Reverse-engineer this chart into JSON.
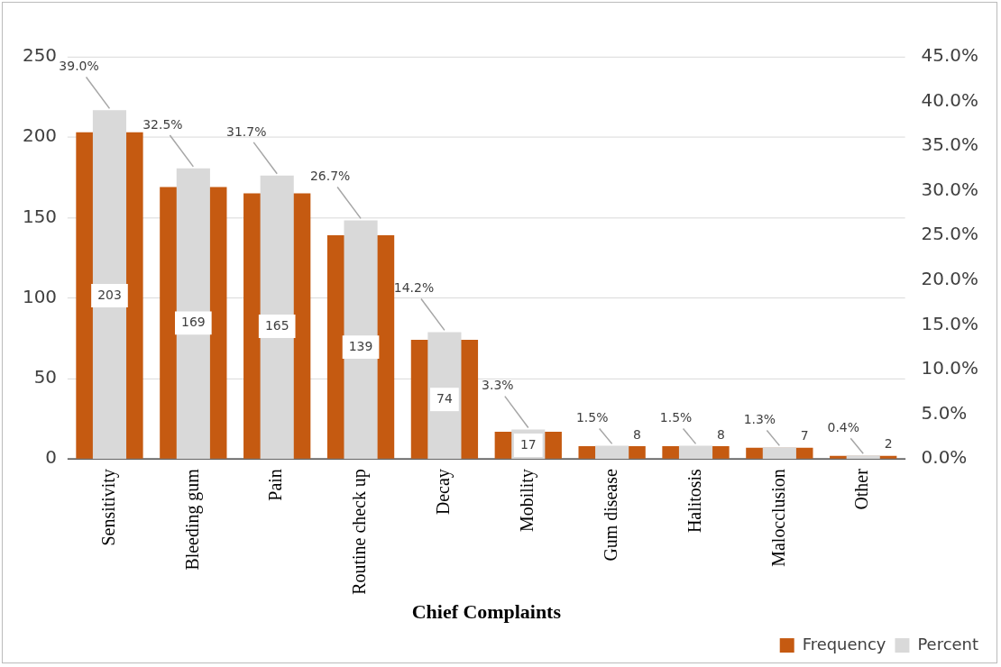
{
  "chart_data": {
    "type": "bar",
    "xlabel": "Chief Complaints",
    "categories": [
      "Sensitivity",
      "Bleeding gum",
      "Pain",
      "Routine check up",
      "Decay",
      "Mobility",
      "Gum disease",
      "Halitosis",
      "Malocclusion",
      "Other"
    ],
    "series": [
      {
        "name": "Frequency",
        "color": "#c55a11",
        "values": [
          203,
          169,
          165,
          139,
          74,
          17,
          8,
          8,
          7,
          2
        ],
        "value_labels": [
          "203",
          "169",
          "165",
          "139",
          "74",
          "17",
          "8",
          "8",
          "7",
          "2"
        ]
      },
      {
        "name": "Percent",
        "color": "#d9d9d9",
        "axis": "y2",
        "values": [
          39.0,
          32.5,
          31.7,
          26.7,
          14.2,
          3.3,
          1.5,
          1.5,
          1.3,
          0.4
        ],
        "value_labels": [
          "39.0%",
          "32.5%",
          "31.7%",
          "26.7%",
          "14.2%",
          "3.3%",
          "1.5%",
          "1.5%",
          "1.3%",
          "0.4%"
        ]
      }
    ],
    "ylim": [
      0,
      250
    ],
    "yticks": [
      0,
      50,
      100,
      150,
      200,
      250
    ],
    "y2lim": [
      0,
      45
    ],
    "y2ticks": [
      {
        "value": 0,
        "label": "0.0%"
      },
      {
        "value": 5,
        "label": "5.0%"
      },
      {
        "value": 10,
        "label": "10.0%"
      },
      {
        "value": 15,
        "label": "15.0%"
      },
      {
        "value": 20,
        "label": "20.0%"
      },
      {
        "value": 25,
        "label": "25.0%"
      },
      {
        "value": 30,
        "label": "30.0%"
      },
      {
        "value": 35,
        "label": "35.0%"
      },
      {
        "value": 40,
        "label": "40.0%"
      },
      {
        "value": 45,
        "label": "45.0%"
      }
    ],
    "grid": "y",
    "legend": "bottom right"
  }
}
